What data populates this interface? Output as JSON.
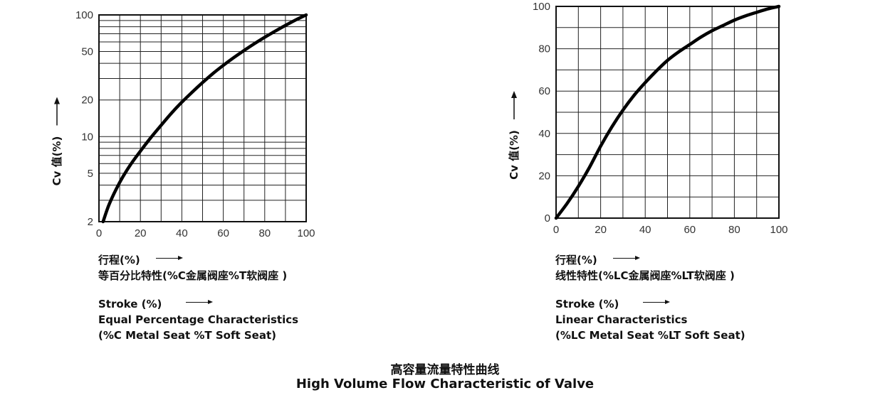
{
  "chart_data": [
    {
      "type": "line",
      "yscale": "log",
      "ylabel": "Cv 值(%)",
      "xlim": [
        0,
        100
      ],
      "ylim": [
        2,
        100
      ],
      "xticks": [
        0,
        20,
        40,
        60,
        80,
        100
      ],
      "yticks": [
        2,
        5,
        10,
        20,
        50,
        100
      ],
      "grid": true,
      "series": [
        {
          "x": [
            2,
            5,
            10,
            15,
            20,
            25,
            30,
            35,
            40,
            45,
            50,
            55,
            60,
            65,
            70,
            75,
            80,
            85,
            90,
            95,
            100
          ],
          "y": [
            2.0,
            2.8,
            4.2,
            5.8,
            7.6,
            9.8,
            12.4,
            15.6,
            19.2,
            23.2,
            27.8,
            33.0,
            38.5,
            44.5,
            51.0,
            58.0,
            65.5,
            73.5,
            82.0,
            91.0,
            100.0
          ]
        }
      ],
      "caption_cn": [
        "行程(%)",
        "等百分比特性(%C金属阀座%T软阀座 )"
      ],
      "caption_en": [
        "Stroke (%)",
        "Equal Percentage Characteristics",
        "(%C Metal Seat %T Soft Seat)"
      ]
    },
    {
      "type": "line",
      "ylabel": "Cv 值(%)",
      "xlim": [
        0,
        100
      ],
      "ylim": [
        0,
        100
      ],
      "xticks": [
        0,
        20,
        40,
        60,
        80,
        100
      ],
      "yticks": [
        0,
        20,
        40,
        60,
        80,
        100
      ],
      "grid": true,
      "series": [
        {
          "x": [
            0,
            5,
            10,
            15,
            20,
            25,
            30,
            35,
            40,
            45,
            50,
            55,
            60,
            65,
            70,
            75,
            80,
            85,
            90,
            95,
            100
          ],
          "y": [
            0,
            7,
            15,
            24,
            34,
            43,
            51,
            58,
            64,
            69.5,
            74.5,
            78.5,
            82,
            85.5,
            88.5,
            91,
            93.5,
            95.5,
            97.2,
            98.8,
            100
          ]
        }
      ],
      "caption_cn": [
        "行程(%)",
        "线性特性(%LC金属阀座%LT软阀座 )"
      ],
      "caption_en": [
        "Stroke (%)",
        "Linear Characteristics",
        "(%LC Metal Seat %LT Soft Seat)"
      ]
    }
  ],
  "footer": {
    "title_cn": "高容量流量特性曲线",
    "title_en": "High Volume Flow Characteristic of Valve"
  }
}
